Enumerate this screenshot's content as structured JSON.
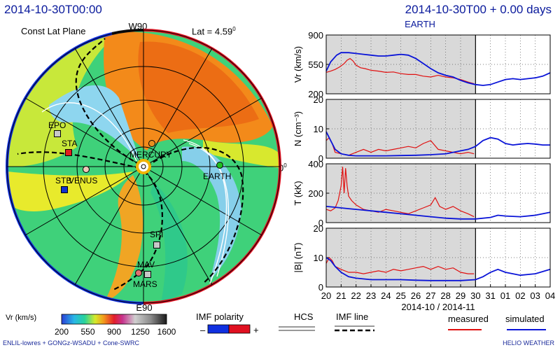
{
  "header": {
    "left_timestamp": "2014-10-30T00:00",
    "right_timestamp": "2014-10-30T00 + 0.00 days",
    "target": "EARTH"
  },
  "polar": {
    "plane_label": "Const Lat Plane",
    "lat_label": "Lat = 4.59",
    "lat_sup": "0",
    "label_top": "W90",
    "label_bottom": "E90",
    "label_right": "0",
    "label_right_sup": "0",
    "bodies": [
      {
        "name": "EPO",
        "shape": "square",
        "color": "#c8c8c8"
      },
      {
        "name": "STA",
        "shape": "square",
        "color": "#e02020"
      },
      {
        "name": "STB",
        "shape": "square",
        "color": "#1030d0"
      },
      {
        "name": "VENUS",
        "shape": "circle",
        "color": "#f0c8b8"
      },
      {
        "name": "MERCURY",
        "shape": "circle",
        "color": "#e89020"
      },
      {
        "name": "EARTH",
        "shape": "circle",
        "color": "#20c020"
      },
      {
        "name": "SPI",
        "shape": "square",
        "color": "#c8c8c8"
      },
      {
        "name": "MAV",
        "shape": "square",
        "color": "#c8c8c8"
      },
      {
        "name": "MARS",
        "shape": "circle",
        "color": "#e07070"
      }
    ]
  },
  "legend": {
    "vr_label": "Vr  (km/s)",
    "vr_ticks": [
      "200",
      "550",
      "900",
      "1250",
      "1600"
    ],
    "imf_polarity_label": "IMF polarity",
    "imf_minus": "–",
    "imf_plus": "+",
    "hcs_label": "HCS",
    "imf_line_label": "IMF line",
    "measured_label": "measured",
    "simulated_label": "simulated",
    "colors": {
      "measured": "#e01010",
      "simulated": "#0a14d8",
      "negative": "#1030e0",
      "positive": "#e01020"
    }
  },
  "footer": {
    "left": "ENLIL-lowres + GONGz-WSADU + Cone-SWRC",
    "right": "HELIO  WEATHER"
  },
  "chart_data": {
    "type": "line",
    "x_ticks": [
      "20",
      "21",
      "22",
      "23",
      "24",
      "25",
      "26",
      "27",
      "28",
      "29",
      "30",
      "31",
      "01",
      "02",
      "03",
      "04"
    ],
    "xlabel": "2014-10 / 2014-11",
    "now_index": 10,
    "shaded_until_index": 10,
    "panels": [
      {
        "ylabel": "Vr (km/s)",
        "ylim": [
          200,
          900
        ],
        "yticks": [
          200,
          550,
          900
        ],
        "ytick_labels": [
          "200",
          "550",
          "900"
        ],
        "measured": [
          [
            0.0,
            455
          ],
          [
            0.3,
            470
          ],
          [
            0.6,
            490
          ],
          [
            0.9,
            520
          ],
          [
            1.2,
            560
          ],
          [
            1.4,
            600
          ],
          [
            1.6,
            620
          ],
          [
            1.8,
            590
          ],
          [
            2.0,
            540
          ],
          [
            2.3,
            510
          ],
          [
            2.6,
            500
          ],
          [
            3.0,
            480
          ],
          [
            3.5,
            470
          ],
          [
            4.0,
            455
          ],
          [
            4.5,
            460
          ],
          [
            5.0,
            440
          ],
          [
            5.5,
            430
          ],
          [
            6.0,
            430
          ],
          [
            6.5,
            410
          ],
          [
            7.0,
            400
          ],
          [
            7.5,
            420
          ],
          [
            8.0,
            400
          ],
          [
            8.5,
            390
          ],
          [
            9.0,
            370
          ],
          [
            9.5,
            340
          ],
          [
            9.9,
            320
          ]
        ],
        "simulated": [
          [
            0.0,
            470
          ],
          [
            0.3,
            580
          ],
          [
            0.7,
            660
          ],
          [
            1.0,
            690
          ],
          [
            1.5,
            690
          ],
          [
            2.0,
            680
          ],
          [
            2.5,
            670
          ],
          [
            3.0,
            660
          ],
          [
            3.5,
            650
          ],
          [
            4.0,
            650
          ],
          [
            4.5,
            660
          ],
          [
            5.0,
            670
          ],
          [
            5.5,
            660
          ],
          [
            6.0,
            620
          ],
          [
            6.5,
            560
          ],
          [
            7.0,
            500
          ],
          [
            7.5,
            450
          ],
          [
            8.0,
            420
          ],
          [
            8.5,
            400
          ],
          [
            9.0,
            360
          ],
          [
            9.5,
            330
          ],
          [
            10.0,
            310
          ],
          [
            10.5,
            300
          ],
          [
            11.0,
            310
          ],
          [
            11.5,
            340
          ],
          [
            12.0,
            370
          ],
          [
            12.5,
            380
          ],
          [
            13.0,
            370
          ],
          [
            13.5,
            380
          ],
          [
            14.0,
            390
          ],
          [
            14.5,
            410
          ],
          [
            15.0,
            450
          ]
        ]
      },
      {
        "ylabel": "N (cm⁻³)",
        "ylim": [
          0,
          20
        ],
        "yticks": [
          0,
          10,
          20
        ],
        "ytick_labels": [
          "0",
          "10",
          "20"
        ],
        "measured": [
          [
            0.0,
            6
          ],
          [
            0.2,
            7
          ],
          [
            0.4,
            5
          ],
          [
            0.6,
            2
          ],
          [
            1.0,
            1.5
          ],
          [
            1.5,
            1
          ],
          [
            2.0,
            2
          ],
          [
            2.5,
            3
          ],
          [
            3.0,
            2
          ],
          [
            3.5,
            3
          ],
          [
            4.0,
            2.5
          ],
          [
            4.5,
            3
          ],
          [
            5.0,
            3.5
          ],
          [
            5.5,
            4
          ],
          [
            6.0,
            3.5
          ],
          [
            6.5,
            5
          ],
          [
            7.0,
            6
          ],
          [
            7.5,
            3
          ],
          [
            8.0,
            2.5
          ],
          [
            8.5,
            2
          ],
          [
            9.0,
            1.5
          ],
          [
            9.5,
            2
          ],
          [
            9.9,
            1.5
          ]
        ],
        "simulated": [
          [
            0.0,
            9
          ],
          [
            0.3,
            6
          ],
          [
            0.6,
            3
          ],
          [
            1.0,
            1.5
          ],
          [
            1.5,
            1
          ],
          [
            2.0,
            0.8
          ],
          [
            3.0,
            0.8
          ],
          [
            4.0,
            0.8
          ],
          [
            5.0,
            0.9
          ],
          [
            6.0,
            1
          ],
          [
            7.0,
            1.2
          ],
          [
            8.0,
            1.5
          ],
          [
            8.5,
            2
          ],
          [
            9.0,
            2.5
          ],
          [
            9.5,
            3
          ],
          [
            10.0,
            4
          ],
          [
            10.5,
            6
          ],
          [
            11.0,
            7
          ],
          [
            11.5,
            6.5
          ],
          [
            12.0,
            5
          ],
          [
            12.5,
            4.5
          ],
          [
            13.0,
            4.8
          ],
          [
            13.5,
            5
          ],
          [
            14.0,
            4.8
          ],
          [
            14.5,
            4.5
          ],
          [
            15.0,
            4.5
          ]
        ]
      },
      {
        "ylabel": "T (kK)",
        "ylim": [
          0,
          400
        ],
        "yticks": [
          0,
          200,
          400
        ],
        "ytick_labels": [
          "0",
          "200",
          "400"
        ],
        "measured": [
          [
            0.0,
            90
          ],
          [
            0.3,
            80
          ],
          [
            0.6,
            100
          ],
          [
            0.8,
            150
          ],
          [
            1.0,
            250
          ],
          [
            1.1,
            380
          ],
          [
            1.2,
            200
          ],
          [
            1.3,
            370
          ],
          [
            1.4,
            250
          ],
          [
            1.5,
            180
          ],
          [
            1.7,
            150
          ],
          [
            2.0,
            120
          ],
          [
            2.5,
            90
          ],
          [
            3.0,
            80
          ],
          [
            3.5,
            70
          ],
          [
            4.0,
            90
          ],
          [
            4.5,
            80
          ],
          [
            5.0,
            70
          ],
          [
            5.5,
            60
          ],
          [
            6.0,
            80
          ],
          [
            6.5,
            100
          ],
          [
            7.0,
            120
          ],
          [
            7.3,
            170
          ],
          [
            7.6,
            110
          ],
          [
            8.0,
            90
          ],
          [
            8.5,
            110
          ],
          [
            9.0,
            80
          ],
          [
            9.5,
            60
          ],
          [
            9.9,
            40
          ]
        ],
        "simulated": [
          [
            0.0,
            110
          ],
          [
            0.5,
            105
          ],
          [
            1.0,
            100
          ],
          [
            1.5,
            95
          ],
          [
            2.0,
            90
          ],
          [
            2.5,
            85
          ],
          [
            3.0,
            80
          ],
          [
            4.0,
            70
          ],
          [
            5.0,
            60
          ],
          [
            6.0,
            50
          ],
          [
            7.0,
            40
          ],
          [
            8.0,
            30
          ],
          [
            9.0,
            25
          ],
          [
            10.0,
            25
          ],
          [
            11.0,
            35
          ],
          [
            11.5,
            50
          ],
          [
            12.0,
            45
          ],
          [
            13.0,
            40
          ],
          [
            14.0,
            50
          ],
          [
            15.0,
            70
          ]
        ]
      },
      {
        "ylabel": "|B| (nT)",
        "ylim": [
          0,
          20
        ],
        "yticks": [
          0,
          10,
          20
        ],
        "ytick_labels": [
          "0",
          "10",
          "20"
        ],
        "measured": [
          [
            0.0,
            8
          ],
          [
            0.2,
            10
          ],
          [
            0.4,
            9
          ],
          [
            0.6,
            7
          ],
          [
            1.0,
            6
          ],
          [
            1.5,
            5
          ],
          [
            2.0,
            5
          ],
          [
            2.5,
            4.5
          ],
          [
            3.0,
            5
          ],
          [
            3.5,
            5.5
          ],
          [
            4.0,
            5
          ],
          [
            4.5,
            6
          ],
          [
            5.0,
            5.5
          ],
          [
            5.5,
            6
          ],
          [
            6.0,
            6.5
          ],
          [
            6.5,
            7
          ],
          [
            7.0,
            6
          ],
          [
            7.5,
            7
          ],
          [
            8.0,
            6
          ],
          [
            8.5,
            6.5
          ],
          [
            9.0,
            5
          ],
          [
            9.5,
            4.5
          ],
          [
            9.9,
            4.5
          ]
        ],
        "simulated": [
          [
            0.0,
            10
          ],
          [
            0.3,
            9
          ],
          [
            0.6,
            7
          ],
          [
            1.0,
            5
          ],
          [
            1.5,
            3.5
          ],
          [
            2.0,
            3
          ],
          [
            3.0,
            2.5
          ],
          [
            4.0,
            2.5
          ],
          [
            5.0,
            2.5
          ],
          [
            6.0,
            2.3
          ],
          [
            7.0,
            2.2
          ],
          [
            8.0,
            2.2
          ],
          [
            9.0,
            2.2
          ],
          [
            10.0,
            2.5
          ],
          [
            10.5,
            3.5
          ],
          [
            11.0,
            5
          ],
          [
            11.5,
            6
          ],
          [
            12.0,
            5
          ],
          [
            12.5,
            4.5
          ],
          [
            13.0,
            4
          ],
          [
            14.0,
            4.5
          ],
          [
            15.0,
            6
          ]
        ]
      }
    ]
  }
}
